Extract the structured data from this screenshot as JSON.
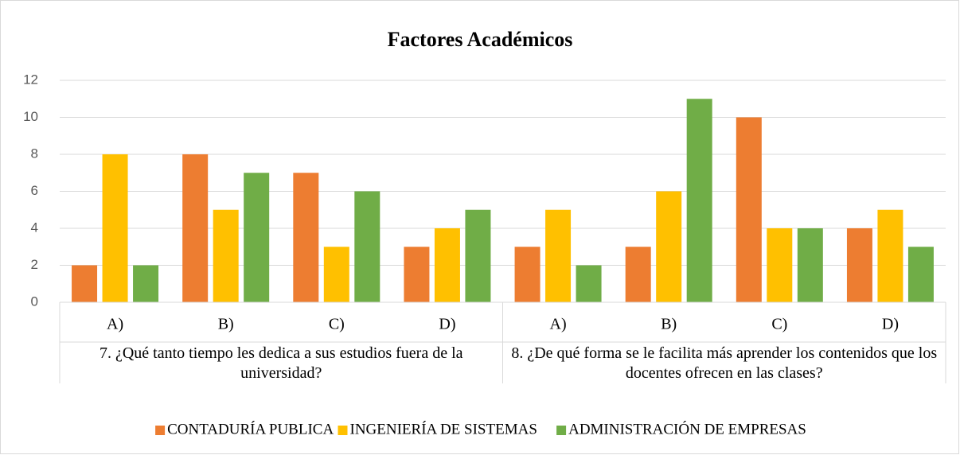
{
  "chart_data": {
    "type": "bar",
    "title": "Factores Académicos",
    "categories": [
      "A)",
      "B)",
      "C)",
      "D)",
      "A)",
      "B)",
      "C)",
      "D)"
    ],
    "groups": [
      "7. ¿Qué tanto tiempo les dedica a sus estudios fuera de la universidad?",
      "8. ¿De qué forma se le facilita más aprender los contenidos que los docentes ofrecen en las clases?"
    ],
    "series": [
      {
        "name": "CONTADURÍA PUBLICA",
        "color": "#ed7d31",
        "values": [
          2,
          8,
          7,
          3,
          3,
          3,
          10,
          4
        ]
      },
      {
        "name": "INGENIERÍA DE SISTEMAS",
        "color": "#ffc000",
        "values": [
          8,
          5,
          3,
          4,
          5,
          6,
          4,
          5
        ]
      },
      {
        "name": "ADMINISTRACIÓN DE EMPRESAS",
        "color": "#70ad47",
        "values": [
          2,
          7,
          6,
          5,
          2,
          11,
          4,
          3
        ]
      }
    ],
    "ylim": [
      0,
      12
    ],
    "yticks": [
      0,
      2,
      4,
      6,
      8,
      10,
      12
    ],
    "grid": true,
    "legend": "bottom"
  }
}
